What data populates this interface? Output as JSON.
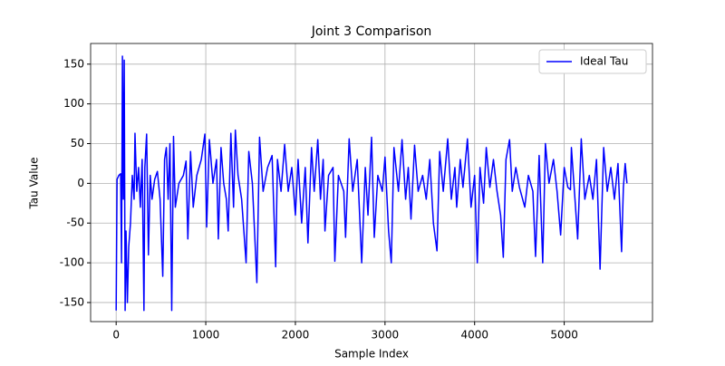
{
  "chart_data": {
    "type": "line",
    "title": "Joint 3 Comparison",
    "x_label": "Sample Index",
    "y_label": "Tau Value",
    "x": [
      0,
      10,
      30,
      50,
      60,
      70,
      80,
      90,
      100,
      110,
      125,
      140,
      160,
      180,
      200,
      210,
      230,
      250,
      270,
      290,
      310,
      320,
      340,
      360,
      380,
      400,
      430,
      460,
      490,
      520,
      540,
      560,
      580,
      600,
      620,
      640,
      660,
      700,
      750,
      780,
      800,
      830,
      860,
      900,
      950,
      990,
      1010,
      1040,
      1080,
      1120,
      1140,
      1170,
      1200,
      1230,
      1250,
      1280,
      1310,
      1330,
      1360,
      1400,
      1450,
      1480,
      1520,
      1570,
      1600,
      1640,
      1690,
      1740,
      1780,
      1800,
      1840,
      1880,
      1920,
      1960,
      2000,
      2030,
      2070,
      2110,
      2140,
      2180,
      2210,
      2250,
      2280,
      2310,
      2330,
      2370,
      2420,
      2440,
      2480,
      2540,
      2560,
      2600,
      2640,
      2690,
      2740,
      2780,
      2810,
      2850,
      2880,
      2920,
      2970,
      3000,
      3040,
      3070,
      3100,
      3150,
      3190,
      3230,
      3260,
      3290,
      3330,
      3370,
      3420,
      3460,
      3500,
      3540,
      3580,
      3610,
      3650,
      3700,
      3740,
      3780,
      3800,
      3840,
      3870,
      3920,
      3960,
      4000,
      4030,
      4060,
      4100,
      4130,
      4170,
      4210,
      4250,
      4290,
      4320,
      4350,
      4390,
      4420,
      4460,
      4500,
      4560,
      4600,
      4650,
      4680,
      4720,
      4760,
      4790,
      4830,
      4880,
      4920,
      4960,
      5000,
      5040,
      5070,
      5080,
      5120,
      5150,
      5190,
      5230,
      5280,
      5320,
      5360,
      5400,
      5440,
      5480,
      5520,
      5560,
      5600,
      5640,
      5660,
      5680,
      5700
    ],
    "series": [
      {
        "name": "Ideal Tau",
        "color": "#0000ff",
        "values": [
          -160,
          5,
          10,
          12,
          -100,
          160,
          -20,
          155,
          -160,
          -60,
          -150,
          -80,
          -50,
          10,
          -20,
          63,
          -10,
          20,
          -30,
          30,
          -160,
          20,
          62,
          -90,
          10,
          -20,
          5,
          15,
          -20,
          -117,
          30,
          45,
          -20,
          50,
          -160,
          59,
          -30,
          0,
          10,
          28,
          -70,
          40,
          -30,
          10,
          30,
          62,
          -55,
          55,
          0,
          30,
          -70,
          45,
          0,
          -20,
          -60,
          63,
          -30,
          67,
          10,
          -20,
          -100,
          40,
          0,
          -125,
          58,
          -10,
          20,
          35,
          -105,
          30,
          -10,
          49,
          -10,
          20,
          -40,
          30,
          -50,
          20,
          -75,
          45,
          -10,
          55,
          -20,
          30,
          -60,
          10,
          20,
          -98,
          10,
          -10,
          -68,
          56,
          -10,
          30,
          -100,
          20,
          -40,
          58,
          -68,
          10,
          -10,
          33,
          -60,
          -100,
          45,
          -10,
          55,
          -20,
          20,
          -45,
          48,
          -10,
          10,
          -20,
          30,
          -50,
          -85,
          40,
          -10,
          56,
          -20,
          20,
          -30,
          30,
          -5,
          56,
          -30,
          10,
          -100,
          20,
          -25,
          45,
          -5,
          30,
          -10,
          -40,
          -93,
          30,
          55,
          -10,
          20,
          -5,
          -30,
          10,
          -10,
          -92,
          35,
          -100,
          50,
          0,
          30,
          -10,
          -65,
          20,
          -5,
          -8,
          45,
          -20,
          -70,
          56,
          -20,
          10,
          -20,
          30,
          -108,
          45,
          -10,
          20,
          -20,
          25,
          -86,
          -5,
          25,
          0
        ]
      }
    ],
    "xlim": [
      -285,
      5985
    ],
    "xticks": [
      0,
      1000,
      2000,
      3000,
      4000,
      5000
    ],
    "ylim": [
      -174,
      176
    ],
    "yticks": [
      -150,
      -100,
      -50,
      0,
      50,
      100,
      150
    ],
    "grid": true,
    "legend": "upper right"
  }
}
